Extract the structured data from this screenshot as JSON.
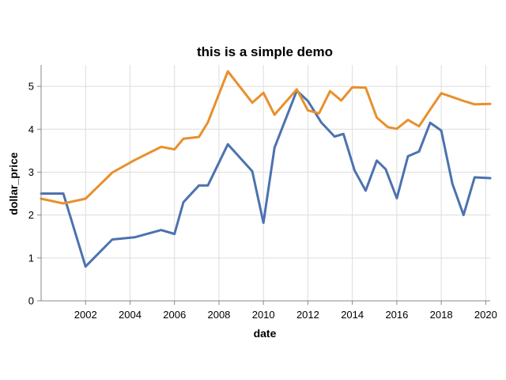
{
  "chart_data": {
    "type": "line",
    "title": "this is a simple demo",
    "xlabel": "date",
    "ylabel": "dollar_price",
    "xlim": [
      2000.0,
      2020.2
    ],
    "ylim": [
      0,
      5.5
    ],
    "x_ticks": [
      2002,
      2004,
      2006,
      2008,
      2010,
      2012,
      2014,
      2016,
      2018,
      2020
    ],
    "y_ticks": [
      0,
      1,
      2,
      3,
      4,
      5
    ],
    "grid": true,
    "series": [
      {
        "color": "#4c72b0",
        "points": [
          [
            2000.0,
            2.5
          ],
          [
            2001.0,
            2.5
          ],
          [
            2002.0,
            0.8
          ],
          [
            2003.2,
            1.43
          ],
          [
            2004.2,
            1.48
          ],
          [
            2005.4,
            1.65
          ],
          [
            2006.0,
            1.56
          ],
          [
            2006.4,
            2.3
          ],
          [
            2007.1,
            2.69
          ],
          [
            2007.5,
            2.69
          ],
          [
            2008.4,
            3.65
          ],
          [
            2009.5,
            3.02
          ],
          [
            2010.0,
            1.82
          ],
          [
            2010.5,
            3.57
          ],
          [
            2011.5,
            4.9
          ],
          [
            2012.0,
            4.66
          ],
          [
            2012.6,
            4.16
          ],
          [
            2013.2,
            3.83
          ],
          [
            2013.6,
            3.89
          ],
          [
            2014.1,
            3.04
          ],
          [
            2014.6,
            2.57
          ],
          [
            2015.1,
            3.27
          ],
          [
            2015.5,
            3.07
          ],
          [
            2016.0,
            2.39
          ],
          [
            2016.5,
            3.37
          ],
          [
            2017.0,
            3.48
          ],
          [
            2017.5,
            4.15
          ],
          [
            2018.0,
            3.97
          ],
          [
            2018.5,
            2.73
          ],
          [
            2019.0,
            2.0
          ],
          [
            2019.5,
            2.88
          ],
          [
            2020.2,
            2.86
          ]
        ]
      },
      {
        "color": "#e8902c",
        "points": [
          [
            2000.0,
            2.38
          ],
          [
            2001.0,
            2.27
          ],
          [
            2002.0,
            2.38
          ],
          [
            2003.2,
            2.99
          ],
          [
            2004.2,
            3.28
          ],
          [
            2005.4,
            3.59
          ],
          [
            2006.0,
            3.53
          ],
          [
            2006.4,
            3.78
          ],
          [
            2007.1,
            3.82
          ],
          [
            2007.5,
            4.16
          ],
          [
            2008.4,
            5.35
          ],
          [
            2009.5,
            4.62
          ],
          [
            2010.0,
            4.85
          ],
          [
            2010.5,
            4.34
          ],
          [
            2011.5,
            4.93
          ],
          [
            2012.0,
            4.44
          ],
          [
            2012.5,
            4.37
          ],
          [
            2013.0,
            4.89
          ],
          [
            2013.5,
            4.67
          ],
          [
            2014.0,
            4.98
          ],
          [
            2014.6,
            4.97
          ],
          [
            2015.1,
            4.27
          ],
          [
            2015.6,
            4.05
          ],
          [
            2016.0,
            4.01
          ],
          [
            2016.5,
            4.22
          ],
          [
            2017.0,
            4.07
          ],
          [
            2017.5,
            4.46
          ],
          [
            2018.0,
            4.84
          ],
          [
            2018.5,
            4.75
          ],
          [
            2019.0,
            4.66
          ],
          [
            2019.5,
            4.58
          ],
          [
            2020.2,
            4.59
          ]
        ]
      }
    ]
  }
}
